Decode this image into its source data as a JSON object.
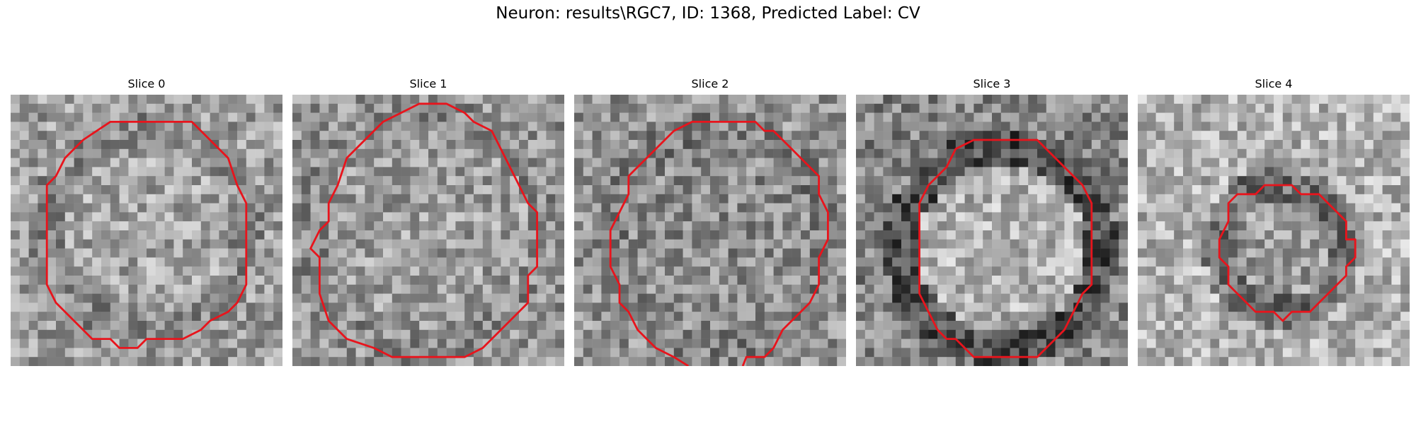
{
  "figure": {
    "title": "Neuron: results\\RGC7, ID: 1368, Predicted Label: CV"
  },
  "panels": [
    {
      "title": "Slice 0"
    },
    {
      "title": "Slice 1"
    },
    {
      "title": "Slice 2"
    },
    {
      "title": "Slice 3"
    },
    {
      "title": "Slice 4"
    }
  ],
  "colors": {
    "contour": "#e8141c",
    "background": "#ffffff"
  }
}
